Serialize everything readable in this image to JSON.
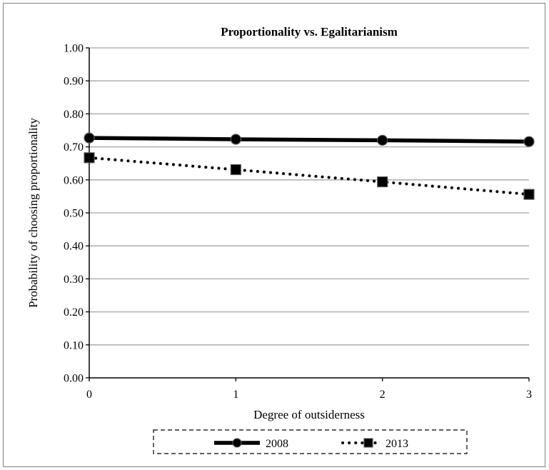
{
  "chart_data": {
    "type": "line",
    "title": "Proportionality vs. Egalitarianism",
    "xlabel": "Degree of outsiderness",
    "ylabel": "Probability of choosing proportionality",
    "x": [
      0,
      1,
      2,
      3
    ],
    "x_tick_labels": [
      "0",
      "1",
      "2",
      "3"
    ],
    "ylim": [
      0,
      1
    ],
    "y_ticks": [
      0,
      0.1,
      0.2,
      0.3,
      0.4,
      0.5,
      0.6,
      0.7,
      0.8,
      0.9,
      1.0
    ],
    "y_tick_labels": [
      "0.00",
      "0.10",
      "0.20",
      "0.30",
      "0.40",
      "0.50",
      "0.60",
      "0.70",
      "0.80",
      "0.90",
      "1.00"
    ],
    "grid": true,
    "legend_position": "bottom",
    "series": [
      {
        "name": "2008",
        "values": [
          0.727,
          0.723,
          0.72,
          0.716
        ],
        "line_style": "solid",
        "marker": "circle",
        "color": "#000000"
      },
      {
        "name": "2013",
        "values": [
          0.667,
          0.631,
          0.594,
          0.556
        ],
        "line_style": "dotted",
        "marker": "square",
        "color": "#000000"
      }
    ]
  }
}
